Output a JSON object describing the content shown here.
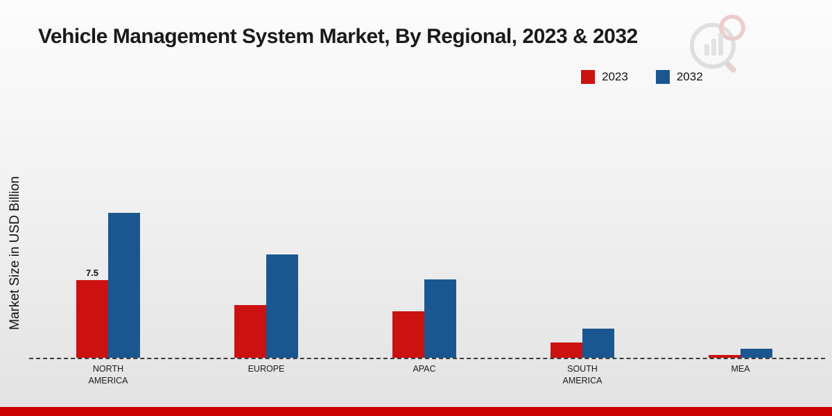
{
  "title": "Vehicle Management System Market, By Regional, 2023 & 2032",
  "ylabel": "Market Size in USD Billion",
  "legend": [
    {
      "label": "2023",
      "color": "#cc1111"
    },
    {
      "label": "2032",
      "color": "#1a5791"
    }
  ],
  "colors": {
    "series_2023": "#cc1111",
    "series_2032": "#1a5791",
    "footer_band": "#cc0000",
    "baseline": "#3a3a3a"
  },
  "chart_data": {
    "type": "bar",
    "title": "Vehicle Management System Market, By Regional, 2023 & 2032",
    "ylabel": "Market Size in USD Billion",
    "xlabel": "",
    "categories": [
      "NORTH AMERICA",
      "EUROPE",
      "APAC",
      "SOUTH AMERICA",
      "MEA"
    ],
    "series": [
      {
        "name": "2023",
        "color": "#cc1111",
        "values": [
          7.5,
          5.1,
          4.5,
          1.5,
          0.3
        ]
      },
      {
        "name": "2032",
        "color": "#1a5791",
        "values": [
          14.0,
          10.0,
          7.6,
          2.8,
          0.9
        ]
      }
    ],
    "ylim": [
      0,
      15
    ],
    "grid": false,
    "legend_position": "top-right",
    "baseline_style": "dashed",
    "data_labels": [
      {
        "series": "2023",
        "category": "NORTH AMERICA",
        "text": "7.5"
      }
    ]
  },
  "watermark": {
    "name": "brand-logo-watermark"
  }
}
